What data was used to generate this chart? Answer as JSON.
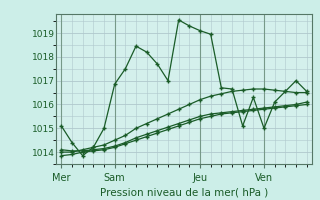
{
  "title": "Pression niveau de la mer( hPa )",
  "bg_color": "#cceee8",
  "plot_bg_color": "#d4f0ec",
  "grid_color": "#b0c8cc",
  "line_color": "#1a5c28",
  "day_labels": [
    "Mer",
    "Sam",
    "Jeu",
    "Ven"
  ],
  "day_positions": [
    0,
    5,
    13,
    19
  ],
  "ylim": [
    1013.5,
    1019.8
  ],
  "yticks": [
    1014,
    1015,
    1016,
    1017,
    1018,
    1019
  ],
  "xlim": [
    -0.5,
    23.5
  ],
  "series": [
    {
      "x": [
        0,
        1,
        2,
        3,
        4,
        5,
        6,
        7,
        8,
        9,
        10,
        11,
        12,
        13,
        14,
        15,
        16,
        17,
        18,
        19,
        20,
        21,
        22,
        23
      ],
      "y": [
        1015.1,
        1014.4,
        1013.85,
        1014.2,
        1015.0,
        1016.85,
        1017.5,
        1018.45,
        1018.2,
        1017.7,
        1017.0,
        1019.55,
        1019.3,
        1019.1,
        1018.95,
        1016.7,
        1016.65,
        1015.1,
        1016.3,
        1015.0,
        1016.1,
        1016.55,
        1017.0,
        1016.55
      ]
    },
    {
      "x": [
        0,
        1,
        2,
        3,
        4,
        5,
        6,
        7,
        8,
        9,
        10,
        11,
        12,
        13,
        14,
        15,
        16,
        17,
        18,
        19,
        20,
        21,
        22,
        23
      ],
      "y": [
        1014.0,
        1014.0,
        1014.1,
        1014.2,
        1014.3,
        1014.5,
        1014.7,
        1015.0,
        1015.2,
        1015.4,
        1015.6,
        1015.8,
        1016.0,
        1016.2,
        1016.35,
        1016.45,
        1016.55,
        1016.6,
        1016.65,
        1016.65,
        1016.6,
        1016.55,
        1016.5,
        1016.5
      ]
    },
    {
      "x": [
        0,
        1,
        2,
        3,
        4,
        5,
        6,
        7,
        8,
        9,
        10,
        11,
        12,
        13,
        14,
        15,
        16,
        17,
        18,
        19,
        20,
        21,
        22,
        23
      ],
      "y": [
        1013.85,
        1013.9,
        1014.0,
        1014.05,
        1014.1,
        1014.2,
        1014.35,
        1014.5,
        1014.65,
        1014.8,
        1014.95,
        1015.1,
        1015.25,
        1015.4,
        1015.5,
        1015.6,
        1015.65,
        1015.7,
        1015.75,
        1015.8,
        1015.85,
        1015.9,
        1015.95,
        1016.0
      ]
    },
    {
      "x": [
        0,
        1,
        2,
        3,
        4,
        5,
        6,
        7,
        8,
        9,
        10,
        11,
        12,
        13,
        14,
        15,
        16,
        17,
        18,
        19,
        20,
        21,
        22,
        23
      ],
      "y": [
        1014.1,
        1014.05,
        1014.05,
        1014.1,
        1014.15,
        1014.25,
        1014.4,
        1014.6,
        1014.75,
        1014.9,
        1015.05,
        1015.2,
        1015.35,
        1015.5,
        1015.6,
        1015.65,
        1015.7,
        1015.75,
        1015.8,
        1015.85,
        1015.9,
        1015.95,
        1016.0,
        1016.1
      ]
    }
  ]
}
